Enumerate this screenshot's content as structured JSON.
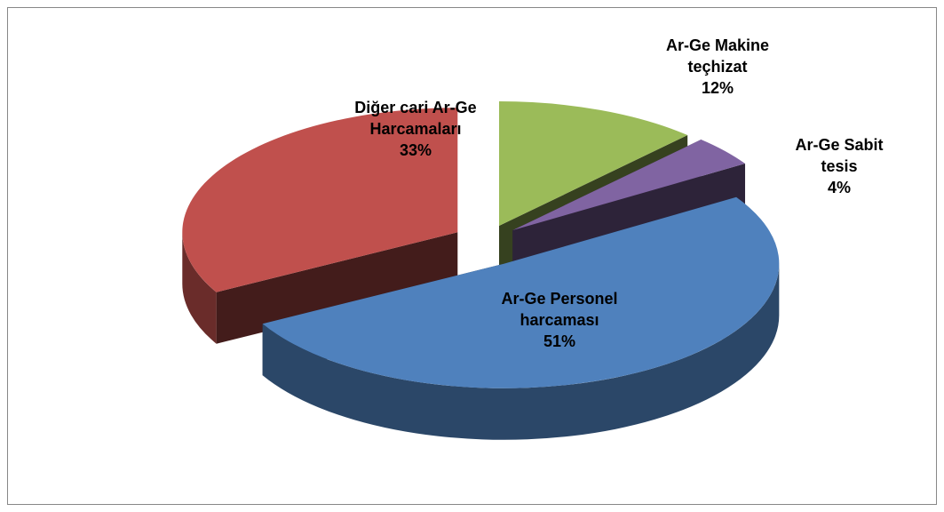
{
  "chart_data": {
    "type": "pie3d",
    "categories": [
      "Ar-Ge Makine teçhizat",
      "Ar-Ge Sabit tesis",
      "Ar-Ge Personel harcaması",
      "Diğer cari Ar-Ge Harcamaları"
    ],
    "values": [
      12,
      4,
      51,
      33
    ],
    "value_labels": [
      "12%",
      "4%",
      "51%",
      "33%"
    ],
    "colors": [
      "#9bbb59",
      "#8064a2",
      "#4f81bd",
      "#c0504d"
    ]
  }
}
